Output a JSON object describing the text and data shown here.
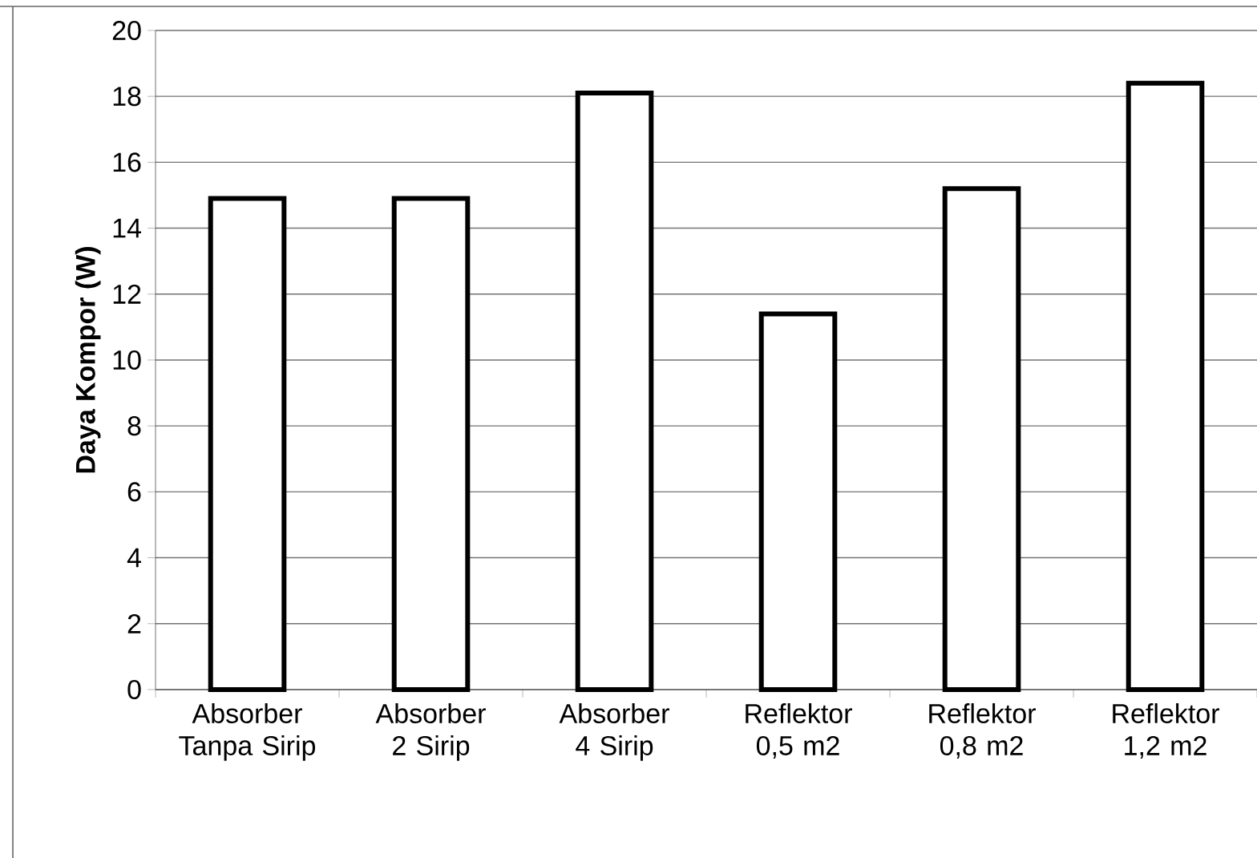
{
  "chart_data": {
    "type": "bar",
    "ylabel": "**Daya Kompor (W)**",
    "categories": [
      "Absorber Tanpa Sirip",
      "Absorber 2 Sirip",
      "Absorber 4 Sirip",
      "Reflektor 0,5 m2",
      "Reflektor 0,8 m2",
      "Reflektor 1,2 m2"
    ],
    "values": [
      14.9,
      14.9,
      18.1,
      11.4,
      15.2,
      18.4
    ],
    "color": "#ffffff",
    "ylim": [
      0,
      20
    ],
    "yticks": [
      0,
      2,
      4,
      6,
      8,
      10,
      12,
      14,
      16,
      18,
      20
    ],
    "grid": "y"
  }
}
